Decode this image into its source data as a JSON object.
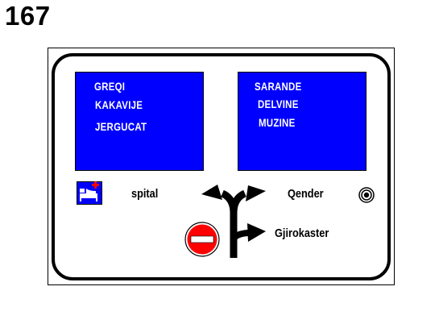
{
  "page_number": "167",
  "sign": {
    "left_panel": [
      "GREQI",
      "KAKAVIJE",
      "JERGUCAT"
    ],
    "right_panel": [
      "SARANDE",
      "DELVINE",
      "MUZINE"
    ],
    "left_label": "spital",
    "right_label": "Qender",
    "bottom_label": "Gjirokaster",
    "icons": [
      "hospital-icon",
      "city-centre-icon",
      "no-entry-icon",
      "direction-arrows-icon"
    ],
    "colors": {
      "panel_blue": "#0000ff",
      "no_entry_red": "#ff0000"
    }
  }
}
